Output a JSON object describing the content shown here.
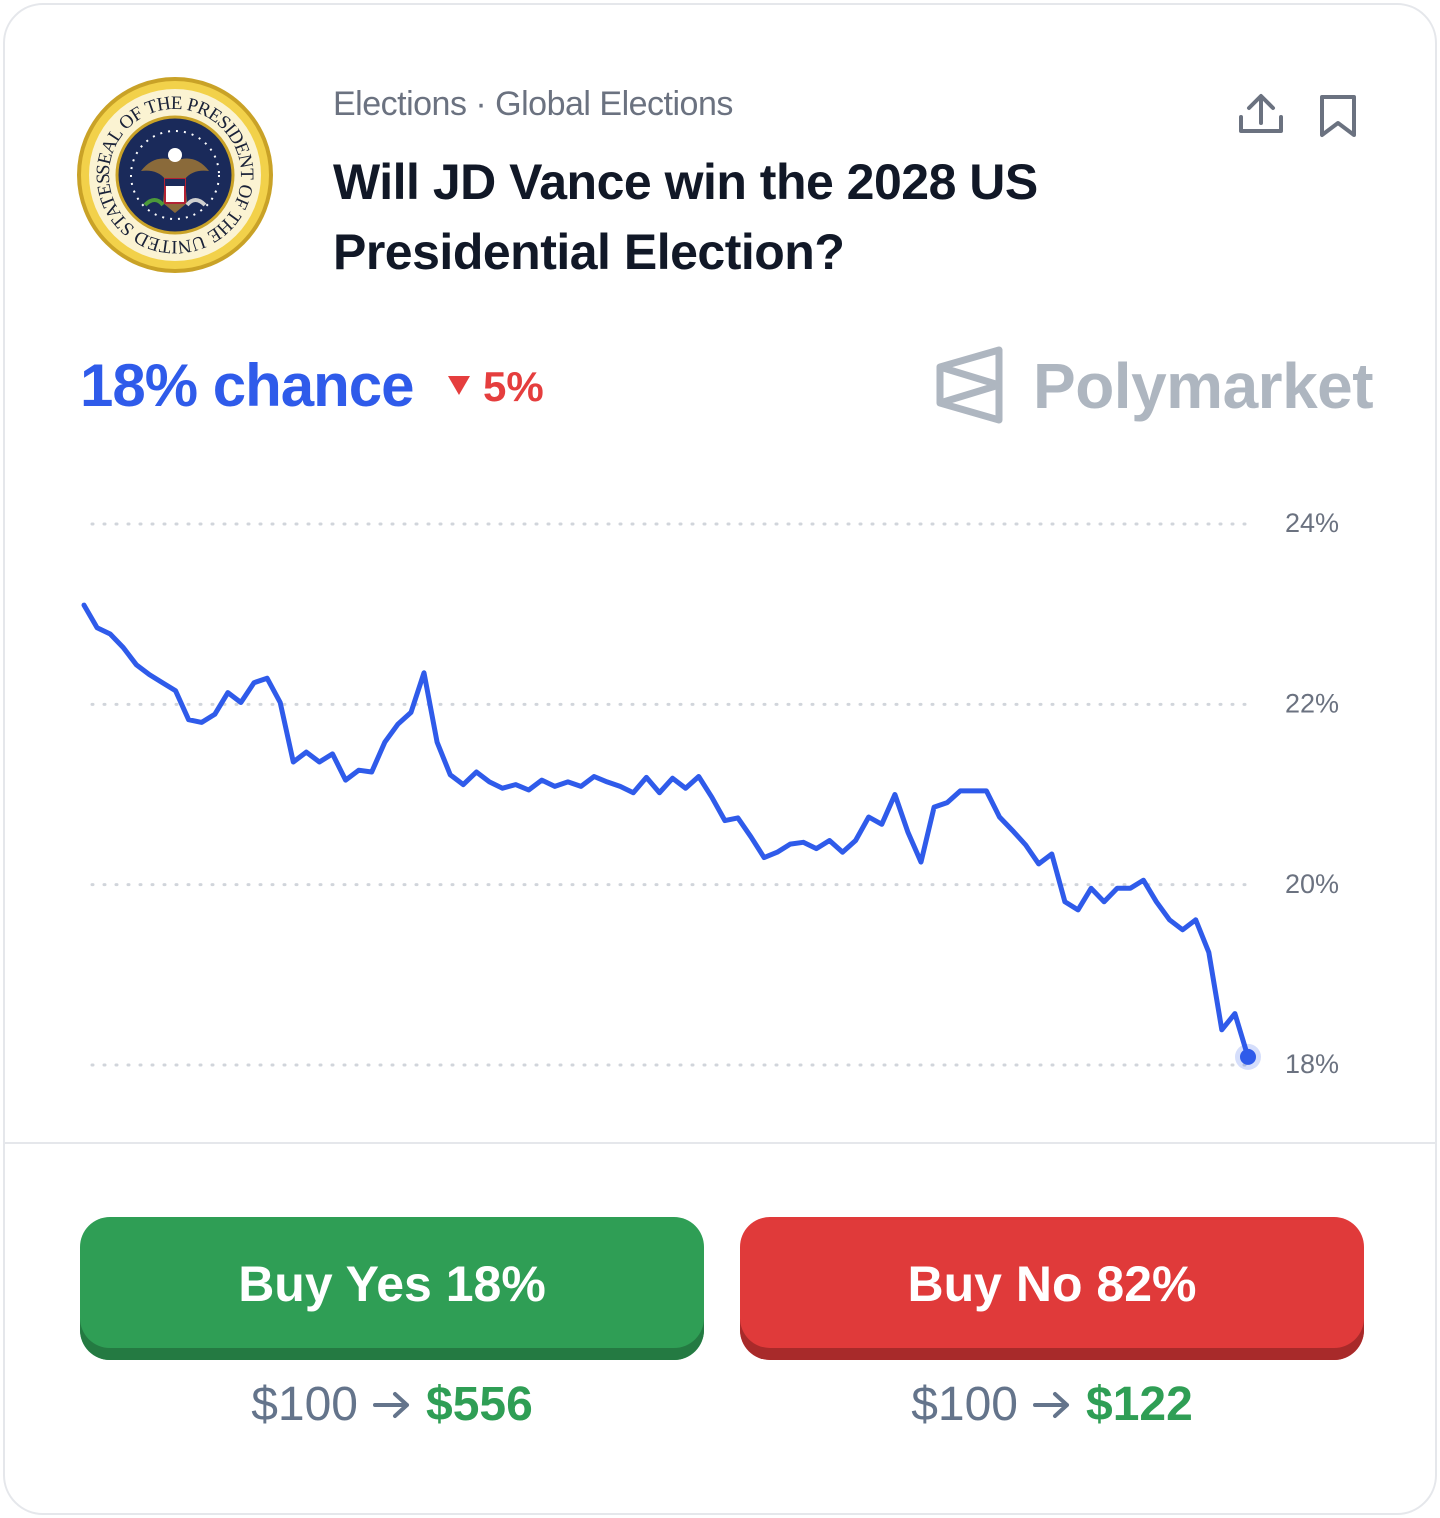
{
  "header": {
    "seal_text": "SEAL OF THE PRESIDENT OF THE UNITED STATES",
    "breadcrumb": "Elections · Global Elections",
    "title": "Will JD Vance win the 2028 US Presidential Election?"
  },
  "summary": {
    "chance": "18% chance",
    "change": "5%",
    "brand": "Polymarket"
  },
  "chart_data": {
    "type": "line",
    "color": "#2f5bea",
    "values": [
      23.1,
      22.85,
      22.78,
      22.63,
      22.44,
      22.33,
      22.24,
      22.15,
      21.83,
      21.8,
      21.89,
      22.13,
      22.02,
      22.24,
      22.29,
      22.02,
      21.36,
      21.47,
      21.36,
      21.45,
      21.16,
      21.27,
      21.25,
      21.58,
      21.78,
      21.91,
      22.35,
      21.58,
      21.22,
      21.11,
      21.25,
      21.14,
      21.07,
      21.11,
      21.05,
      21.16,
      21.09,
      21.14,
      21.09,
      21.2,
      21.14,
      21.09,
      21.02,
      21.19,
      21.02,
      21.18,
      21.07,
      21.2,
      20.97,
      20.71,
      20.74,
      20.53,
      20.3,
      20.36,
      20.45,
      20.47,
      20.4,
      20.49,
      20.36,
      20.49,
      20.75,
      20.67,
      21.0,
      20.58,
      20.25,
      20.86,
      20.91,
      21.04,
      21.04,
      21.04,
      20.75,
      20.6,
      20.44,
      20.23,
      20.34,
      19.81,
      19.72,
      19.96,
      19.81,
      19.96,
      19.96,
      20.05,
      19.81,
      19.61,
      19.5,
      19.61,
      19.25,
      18.39,
      18.57,
      18.09
    ],
    "ylim": [
      18,
      24
    ],
    "yticks": [
      {
        "value": 24,
        "label": "24%"
      },
      {
        "value": 22,
        "label": "22%"
      },
      {
        "value": 20,
        "label": "20%"
      },
      {
        "value": 18,
        "label": "18%"
      }
    ],
    "grid": true
  },
  "actions": {
    "yes": {
      "label": "Buy Yes 18%",
      "stake": "$100",
      "payout": "$556"
    },
    "no": {
      "label": "Buy No 82%",
      "stake": "$100",
      "payout": "$122"
    }
  }
}
